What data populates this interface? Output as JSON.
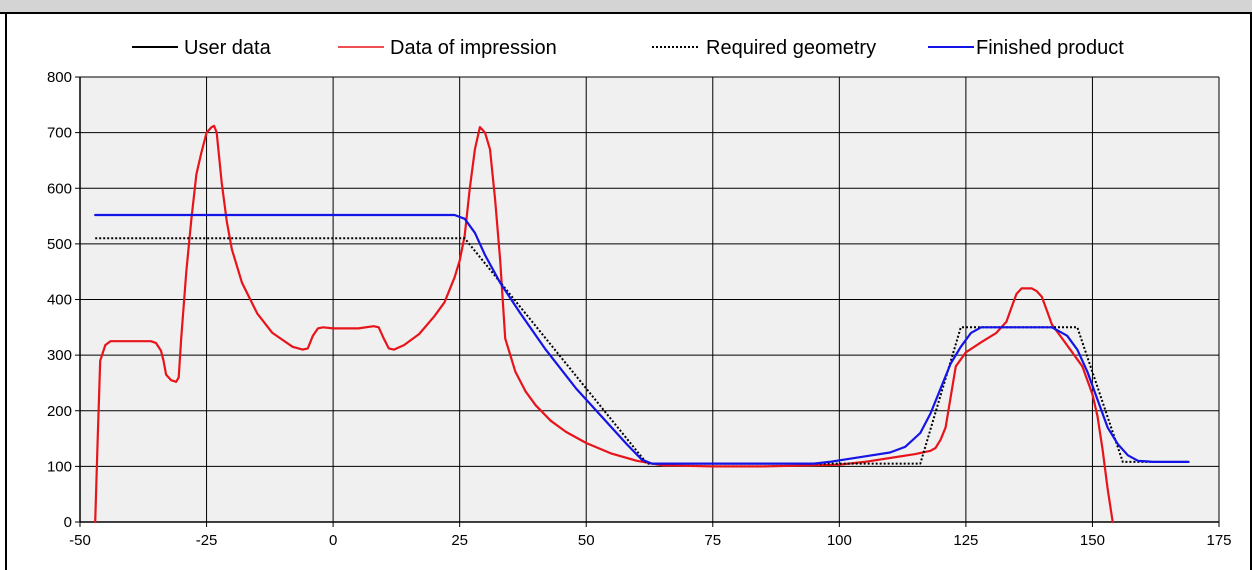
{
  "chart_data": {
    "type": "line",
    "title": "",
    "xlabel": "",
    "ylabel": "",
    "xlim": [
      -50,
      175
    ],
    "ylim": [
      0,
      800
    ],
    "x_ticks": [
      -50,
      -25,
      0,
      25,
      50,
      75,
      100,
      125,
      150,
      175
    ],
    "y_ticks": [
      0,
      100,
      200,
      300,
      400,
      500,
      600,
      700,
      800
    ],
    "x_tick_labels": [
      "-50",
      "-25",
      "0",
      "25",
      "50",
      "75",
      "100",
      "125",
      "150",
      "175"
    ],
    "y_tick_labels": [
      "0",
      "100",
      "200",
      "300",
      "400",
      "500",
      "600",
      "700",
      "800"
    ],
    "grid": true,
    "plot_background": "#f0f0f0",
    "legend_position": "top",
    "series": [
      {
        "name": "User data",
        "color": "#000000",
        "style": "solid",
        "points": []
      },
      {
        "name": "Data of impression",
        "color": "#e8141b",
        "style": "solid",
        "points": [
          [
            -47,
            0
          ],
          [
            -46.5,
            150
          ],
          [
            -46,
            290
          ],
          [
            -45,
            318
          ],
          [
            -44,
            325
          ],
          [
            -40,
            325
          ],
          [
            -36,
            325
          ],
          [
            -35,
            322
          ],
          [
            -34,
            308
          ],
          [
            -33.5,
            290
          ],
          [
            -33,
            265
          ],
          [
            -32,
            255
          ],
          [
            -31,
            252
          ],
          [
            -30.5,
            260
          ],
          [
            -30,
            330
          ],
          [
            -29,
            450
          ],
          [
            -28,
            545
          ],
          [
            -27,
            625
          ],
          [
            -26,
            665
          ],
          [
            -25,
            700
          ],
          [
            -24,
            710
          ],
          [
            -23.5,
            712
          ],
          [
            -23,
            700
          ],
          [
            -22,
            610
          ],
          [
            -21,
            540
          ],
          [
            -20,
            490
          ],
          [
            -18,
            430
          ],
          [
            -15,
            375
          ],
          [
            -12,
            340
          ],
          [
            -8,
            315
          ],
          [
            -6,
            310
          ],
          [
            -5,
            312
          ],
          [
            -4,
            335
          ],
          [
            -3,
            348
          ],
          [
            -2,
            350
          ],
          [
            0,
            348
          ],
          [
            5,
            348
          ],
          [
            8,
            352
          ],
          [
            9,
            350
          ],
          [
            10,
            330
          ],
          [
            11,
            312
          ],
          [
            12,
            310
          ],
          [
            14,
            318
          ],
          [
            17,
            338
          ],
          [
            20,
            370
          ],
          [
            22,
            395
          ],
          [
            24,
            440
          ],
          [
            25,
            470
          ],
          [
            26,
            515
          ],
          [
            27,
            600
          ],
          [
            28,
            670
          ],
          [
            29,
            710
          ],
          [
            30,
            700
          ],
          [
            31,
            670
          ],
          [
            32,
            580
          ],
          [
            33,
            470
          ],
          [
            34,
            330
          ],
          [
            36,
            270
          ],
          [
            38,
            235
          ],
          [
            40,
            210
          ],
          [
            43,
            182
          ],
          [
            46,
            162
          ],
          [
            50,
            142
          ],
          [
            55,
            123
          ],
          [
            60,
            110
          ],
          [
            65,
            102
          ],
          [
            75,
            100
          ],
          [
            85,
            100
          ],
          [
            95,
            102
          ],
          [
            100,
            103
          ],
          [
            105,
            108
          ],
          [
            110,
            115
          ],
          [
            115,
            122
          ],
          [
            118,
            128
          ],
          [
            119,
            133
          ],
          [
            120,
            148
          ],
          [
            121,
            170
          ],
          [
            122,
            225
          ],
          [
            123,
            280
          ],
          [
            125,
            305
          ],
          [
            128,
            323
          ],
          [
            131,
            340
          ],
          [
            133,
            360
          ],
          [
            134,
            385
          ],
          [
            135,
            410
          ],
          [
            136,
            420
          ],
          [
            138,
            420
          ],
          [
            139,
            415
          ],
          [
            140,
            405
          ],
          [
            141,
            380
          ],
          [
            142,
            355
          ],
          [
            144,
            330
          ],
          [
            146,
            305
          ],
          [
            148,
            280
          ],
          [
            150,
            230
          ],
          [
            151,
            190
          ],
          [
            152,
            130
          ],
          [
            153,
            60
          ],
          [
            154,
            0
          ]
        ]
      },
      {
        "name": "Required geometry",
        "color": "#000000",
        "style": "dotted",
        "points": [
          [
            -47,
            510
          ],
          [
            26,
            510
          ],
          [
            62,
            105
          ],
          [
            116,
            105
          ],
          [
            124,
            350
          ],
          [
            147,
            350
          ],
          [
            156,
            108
          ],
          [
            169,
            108
          ]
        ]
      },
      {
        "name": "Finished product",
        "color": "#1414e6",
        "style": "solid",
        "points": [
          [
            -47,
            552
          ],
          [
            24,
            552
          ],
          [
            26,
            545
          ],
          [
            28,
            520
          ],
          [
            30,
            480
          ],
          [
            33,
            430
          ],
          [
            37,
            375
          ],
          [
            42,
            310
          ],
          [
            48,
            240
          ],
          [
            54,
            180
          ],
          [
            58,
            140
          ],
          [
            61,
            112
          ],
          [
            63,
            105
          ],
          [
            95,
            105
          ],
          [
            98,
            108
          ],
          [
            105,
            118
          ],
          [
            110,
            125
          ],
          [
            113,
            135
          ],
          [
            116,
            160
          ],
          [
            118,
            195
          ],
          [
            120,
            240
          ],
          [
            122,
            285
          ],
          [
            124,
            315
          ],
          [
            126,
            340
          ],
          [
            128,
            350
          ],
          [
            142,
            350
          ],
          [
            145,
            335
          ],
          [
            147,
            310
          ],
          [
            149,
            270
          ],
          [
            151,
            220
          ],
          [
            153,
            170
          ],
          [
            155,
            140
          ],
          [
            157,
            120
          ],
          [
            159,
            110
          ],
          [
            162,
            108
          ],
          [
            169,
            108
          ]
        ]
      }
    ]
  }
}
